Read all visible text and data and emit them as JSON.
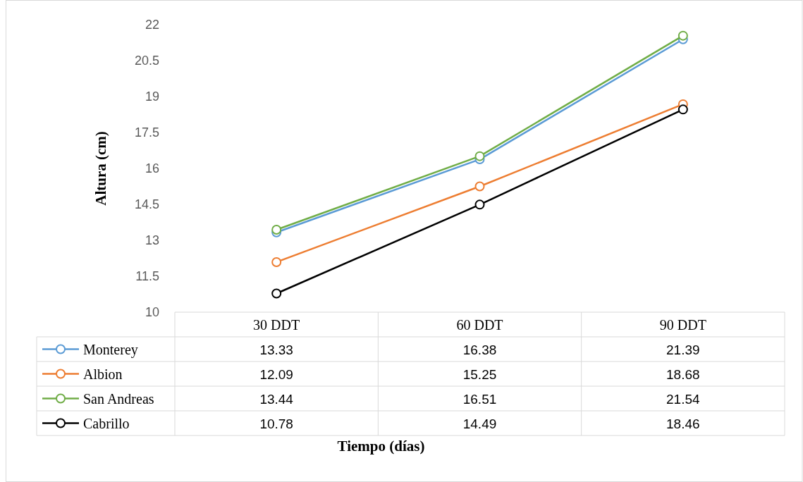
{
  "chart_data": {
    "type": "line",
    "annotations": [
      "Tiempo (días)"
    ],
    "ylabel": "Altura (cm)",
    "categories": [
      "30 DDT",
      "60 DDT",
      "90 DDT"
    ],
    "ylim": [
      10,
      22
    ],
    "yticks": [
      10,
      11.5,
      13,
      14.5,
      16,
      17.5,
      19,
      20.5,
      22
    ],
    "series": [
      {
        "name": "Monterey",
        "color": "#5b9bd5",
        "values": [
          13.33,
          16.38,
          21.39
        ]
      },
      {
        "name": "Albion",
        "color": "#ed7d31",
        "values": [
          12.09,
          15.25,
          18.68
        ]
      },
      {
        "name": "San Andreas",
        "color": "#70ad47",
        "values": [
          13.44,
          16.51,
          21.54
        ]
      },
      {
        "name": "Cabrillo",
        "color": "#000000",
        "values": [
          10.78,
          14.49,
          18.46
        ]
      }
    ],
    "marker": "circle",
    "line_style": "solid",
    "data_labels": true,
    "legend": "bottom",
    "grid": false
  }
}
